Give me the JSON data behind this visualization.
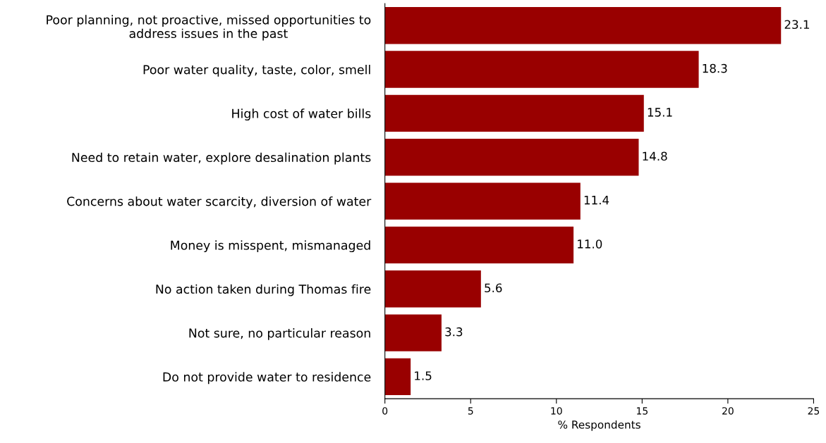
{
  "chart_data": {
    "type": "bar",
    "orientation": "horizontal",
    "xlabel": "% Respondents",
    "categories": [
      "Poor planning, not proactive, missed opportunities to\naddress issues in the past",
      "Poor water quality, taste, color, smell",
      "High cost of water bills",
      "Need to retain water, explore desalination plants",
      "Concerns about water scarcity, diversion of water",
      "Money is misspent, mismanaged",
      "No action taken during Thomas fire",
      "Not sure, no particular reason",
      "Do not provide water to residence"
    ],
    "values": [
      23.1,
      18.3,
      15.1,
      14.8,
      11.4,
      11.0,
      5.6,
      3.3,
      1.5
    ],
    "value_labels": [
      "23.1",
      "18.3",
      "15.1",
      "14.8",
      "11.4",
      "11.0",
      "5.6",
      "3.3",
      "1.5"
    ],
    "color": "#990000",
    "xlim": [
      0,
      25
    ],
    "xticks": [
      0,
      5,
      10,
      15,
      20,
      25
    ],
    "grid": false
  }
}
